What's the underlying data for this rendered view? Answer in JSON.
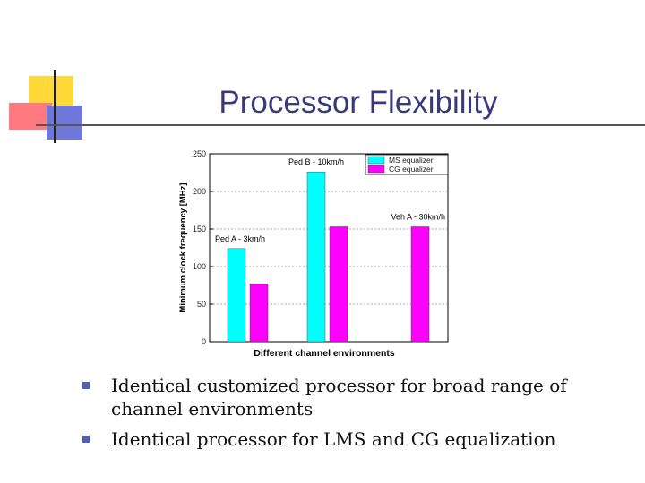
{
  "slide": {
    "title": "Processor Flexibility",
    "bullets": [
      "Identical customized processor for broad range of channel environments",
      "Identical processor for LMS and CG equalization"
    ]
  },
  "colors": {
    "title": "#3a3a7a",
    "lms_bar": "#00ffff",
    "cg_bar": "#ff00ff",
    "bullet": "#5060b0"
  },
  "chart_data": {
    "type": "bar",
    "title": "",
    "xlabel": "Different channel environments",
    "ylabel": "Minimum clock frequency [MHz]",
    "ylim": [
      0,
      250
    ],
    "yticks": [
      0,
      50,
      100,
      150,
      200,
      250
    ],
    "grid": true,
    "legend_position": "top-right",
    "categories": [
      "Ped A - 3km/h",
      "Ped B - 10km/h",
      "Veh A - 30km/h"
    ],
    "series": [
      {
        "name": "MS equalizer",
        "color": "#00ffff",
        "values": [
          124,
          226,
          null
        ]
      },
      {
        "name": "CG equalizer",
        "color": "#ff00ff",
        "values": [
          77,
          153,
          153
        ]
      }
    ]
  }
}
